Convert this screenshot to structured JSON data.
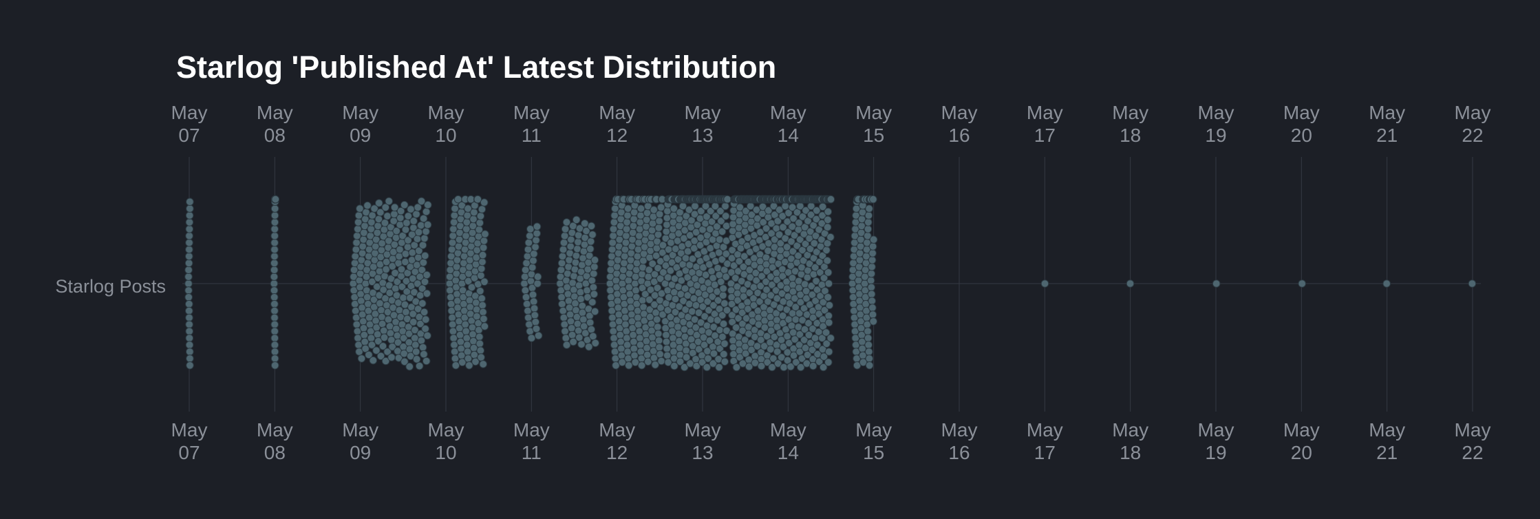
{
  "chart_data": {
    "type": "scatter",
    "subtype": "beeswarm",
    "title": "Starlog 'Published At' Latest Distribution",
    "xlabel": "",
    "ylabel": "",
    "category": "Starlog Posts",
    "x_axis": {
      "type": "date",
      "range": [
        "2024-05-07",
        "2024-05-22"
      ],
      "ticks": [
        {
          "date": "2024-05-07",
          "month": "May",
          "day": "07"
        },
        {
          "date": "2024-05-08",
          "month": "May",
          "day": "08"
        },
        {
          "date": "2024-05-09",
          "month": "May",
          "day": "09"
        },
        {
          "date": "2024-05-10",
          "month": "May",
          "day": "10"
        },
        {
          "date": "2024-05-11",
          "month": "May",
          "day": "11"
        },
        {
          "date": "2024-05-12",
          "month": "May",
          "day": "12"
        },
        {
          "date": "2024-05-13",
          "month": "May",
          "day": "13"
        },
        {
          "date": "2024-05-14",
          "month": "May",
          "day": "14"
        },
        {
          "date": "2024-05-15",
          "month": "May",
          "day": "15"
        },
        {
          "date": "2024-05-16",
          "month": "May",
          "day": "16"
        },
        {
          "date": "2024-05-17",
          "month": "May",
          "day": "17"
        },
        {
          "date": "2024-05-18",
          "month": "May",
          "day": "18"
        },
        {
          "date": "2024-05-19",
          "month": "May",
          "day": "19"
        },
        {
          "date": "2024-05-20",
          "month": "May",
          "day": "20"
        },
        {
          "date": "2024-05-21",
          "month": "May",
          "day": "21"
        },
        {
          "date": "2024-05-22",
          "month": "May",
          "day": "22"
        }
      ],
      "tick_labels_top": true,
      "tick_labels_bottom": true
    },
    "grid": true,
    "legend": "none",
    "clusters": [
      {
        "start": "2024-05-07 00:00",
        "end": "2024-05-07 00:00",
        "count": 25
      },
      {
        "start": "2024-05-08 00:00",
        "end": "2024-05-08 00:00",
        "count": 38
      },
      {
        "start": "2024-05-08 22:00",
        "end": "2024-05-09 19:00",
        "count": 260
      },
      {
        "start": "2024-05-10 01:00",
        "end": "2024-05-10 11:00",
        "count": 140
      },
      {
        "start": "2024-05-10 22:00",
        "end": "2024-05-11 02:00",
        "count": 36
      },
      {
        "start": "2024-05-11 08:00",
        "end": "2024-05-11 18:00",
        "count": 100
      },
      {
        "start": "2024-05-11 22:00",
        "end": "2024-05-12 13:00",
        "count": 220
      },
      {
        "start": "2024-05-12 13:30",
        "end": "2024-05-13 07:00",
        "count": 390
      },
      {
        "start": "2024-05-13 08:00",
        "end": "2024-05-14 12:00",
        "count": 680
      },
      {
        "start": "2024-05-14 18:00",
        "end": "2024-05-15 00:00",
        "count": 110
      },
      {
        "start": "2024-05-17 00:00",
        "end": "2024-05-17 00:00",
        "count": 1
      },
      {
        "start": "2024-05-18 00:00",
        "end": "2024-05-18 00:00",
        "count": 1
      },
      {
        "start": "2024-05-19 00:00",
        "end": "2024-05-19 00:00",
        "count": 1
      },
      {
        "start": "2024-05-20 00:00",
        "end": "2024-05-20 00:00",
        "count": 1
      },
      {
        "start": "2024-05-21 00:00",
        "end": "2024-05-21 00:00",
        "count": 1
      },
      {
        "start": "2024-05-22 00:00",
        "end": "2024-05-22 00:00",
        "count": 1
      }
    ]
  },
  "colors": {
    "background": "#1c1f26",
    "point_fill": "#4e6670",
    "point_stroke": "#2b3840",
    "grid": "#353a44",
    "title": "#ffffff",
    "tick_label": "#8b9099"
  }
}
